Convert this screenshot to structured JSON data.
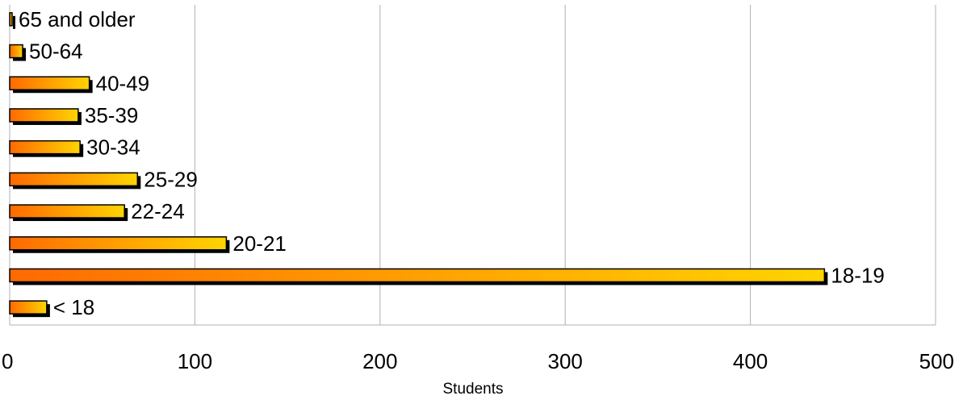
{
  "chart_data": {
    "type": "bar",
    "orientation": "horizontal",
    "categories": [
      "< 18",
      "18-19",
      "20-21",
      "22-24",
      "25-29",
      "30-34",
      "35-39",
      "40-49",
      "50-64",
      "65 and older"
    ],
    "values": [
      20,
      440,
      117,
      62,
      69,
      38,
      37,
      43,
      7,
      1
    ],
    "xlabel": "Students",
    "ylabel": "",
    "xlim": [
      0,
      500
    ],
    "xticks": [
      0,
      100,
      200,
      300,
      400,
      500
    ],
    "grid": true,
    "legend": "none",
    "colors": {
      "bar_start": "#ff6a00",
      "bar_end": "#ffd400",
      "shadow": "#000000",
      "grid": "#b0b0b0"
    }
  }
}
